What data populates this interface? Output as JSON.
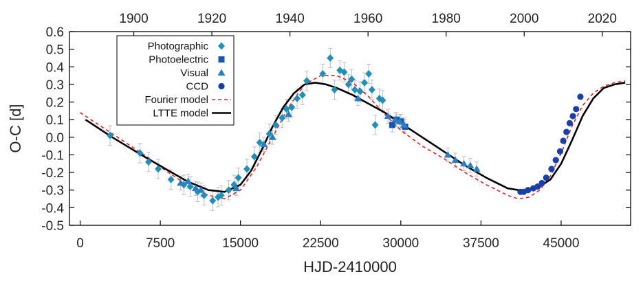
{
  "chart_data": {
    "type": "scatter",
    "title": "",
    "xlabel": "HJD-2410000",
    "ylabel": "O-C [d]",
    "xlim": [
      -1000,
      51500
    ],
    "ylim": [
      -0.5,
      0.6
    ],
    "x_ticks": [
      0,
      7500,
      15000,
      22500,
      30000,
      37500,
      45000
    ],
    "x_tick_labels": [
      "0",
      "7500",
      "15000",
      "22500",
      "30000",
      "37500",
      "45000"
    ],
    "y_ticks": [
      -0.5,
      -0.4,
      -0.3,
      -0.2,
      -0.1,
      0.0,
      0.1,
      0.2,
      0.3,
      0.4,
      0.5,
      0.6
    ],
    "y_tick_labels": [
      "-0.5",
      "-0.4",
      "-0.3",
      "-0.2",
      "-0.1",
      "0.0",
      "0.1",
      "0.2",
      "0.3",
      "0.4",
      "0.5",
      "0.6"
    ],
    "top_axis": {
      "label": "",
      "ticks": [
        1900,
        1920,
        1940,
        1960,
        1980,
        2000,
        2020
      ],
      "tick_labels": [
        "1900",
        "1920",
        "1940",
        "1960",
        "1980",
        "2000",
        "2020"
      ],
      "year_to_hjd": {
        "year0": 1900,
        "hjd0": 5020,
        "days_per_year": 365.25
      }
    },
    "grid": false,
    "legend_position": "top-left",
    "colors": {
      "photographic": "#2090b8",
      "photoelectric": "#1558b0",
      "visual": "#2a7fc4",
      "ccd": "#1a3fa8",
      "fourier": "#e02020",
      "ltte": "#000000",
      "errorbar": "#bdbdbd"
    },
    "series": [
      {
        "name": "Photographic",
        "marker": "diamond",
        "x": [
          2800,
          5600,
          6400,
          7300,
          8500,
          9700,
          10300,
          11000,
          11600,
          12400,
          12900,
          13200,
          13900,
          14400,
          14800,
          15600,
          16300,
          16800,
          17700,
          18300,
          18900,
          19300,
          19800,
          20300,
          20800,
          21200,
          22700,
          23400,
          23800,
          24300,
          24700,
          25100,
          25400,
          25700,
          26200,
          26600,
          27000,
          27300,
          27600,
          28000,
          28300
        ],
        "y": [
          0.01,
          -0.09,
          -0.14,
          -0.18,
          -0.24,
          -0.27,
          -0.28,
          -0.31,
          -0.33,
          -0.36,
          -0.34,
          -0.33,
          -0.3,
          -0.27,
          -0.23,
          -0.18,
          -0.11,
          -0.03,
          0.02,
          0.07,
          0.11,
          0.16,
          0.17,
          0.22,
          0.24,
          0.32,
          0.36,
          0.45,
          0.27,
          0.38,
          0.37,
          0.3,
          0.33,
          0.27,
          0.26,
          0.31,
          0.36,
          0.27,
          0.07,
          0.22,
          0.21
        ]
      },
      {
        "name": "Photoelectric",
        "marker": "square",
        "x": [
          29200,
          29600,
          30000,
          30400
        ],
        "y": [
          0.07,
          0.1,
          0.09,
          0.06
        ]
      },
      {
        "name": "Visual",
        "marker": "triangle",
        "x": [
          9400,
          10100,
          10800,
          11300,
          14600,
          17200,
          18000,
          19500,
          26000,
          28800,
          29500,
          29900,
          30300,
          34400,
          35100,
          35900,
          36500,
          37100
        ],
        "y": [
          -0.26,
          -0.25,
          -0.29,
          -0.3,
          -0.29,
          -0.04,
          0.0,
          0.13,
          0.22,
          0.12,
          0.1,
          0.09,
          0.07,
          -0.1,
          -0.13,
          -0.15,
          -0.16,
          -0.18
        ]
      },
      {
        "name": "CCD",
        "marker": "circle",
        "x": [
          41200,
          41500,
          41900,
          42400,
          42800,
          43200,
          43600,
          44100,
          44500,
          44900,
          45200,
          45500,
          45800,
          46100,
          46400,
          46800
        ],
        "y": [
          -0.31,
          -0.31,
          -0.3,
          -0.29,
          -0.28,
          -0.26,
          -0.23,
          -0.18,
          -0.13,
          -0.08,
          -0.02,
          0.03,
          0.08,
          0.12,
          0.16,
          0.23
        ]
      },
      {
        "name": "Fourier model",
        "type": "line",
        "style": "dashed",
        "x": [
          0,
          3000,
          6000,
          8000,
          10000,
          12000,
          13500,
          15000,
          16500,
          18000,
          19500,
          21000,
          22500,
          24000,
          25500,
          27000,
          28500,
          30000,
          32000,
          34000,
          36000,
          38000,
          40000,
          41000,
          42000,
          43000,
          44000,
          45000,
          46000,
          47000,
          48000,
          49000,
          50000,
          51000
        ],
        "y": [
          0.14,
          0.02,
          -0.1,
          -0.19,
          -0.27,
          -0.33,
          -0.35,
          -0.3,
          -0.17,
          0.0,
          0.17,
          0.3,
          0.35,
          0.35,
          0.31,
          0.23,
          0.13,
          0.04,
          -0.05,
          -0.12,
          -0.2,
          -0.27,
          -0.33,
          -0.35,
          -0.34,
          -0.3,
          -0.22,
          -0.09,
          0.06,
          0.18,
          0.25,
          0.29,
          0.31,
          0.32
        ]
      },
      {
        "name": "LTTE model",
        "type": "line",
        "style": "solid",
        "x": [
          500,
          3000,
          6000,
          8000,
          10000,
          12000,
          13500,
          15000,
          16000,
          17000,
          18000,
          19000,
          20000,
          21000,
          22000,
          23000,
          24000,
          25500,
          27000,
          28500,
          30000,
          32000,
          34000,
          36000,
          38000,
          40000,
          41000,
          42000,
          43000,
          44000,
          45000,
          46000,
          47000,
          48000,
          49000,
          50000,
          51000
        ],
        "y": [
          0.1,
          0.0,
          -0.11,
          -0.18,
          -0.25,
          -0.3,
          -0.31,
          -0.27,
          -0.19,
          -0.07,
          0.06,
          0.17,
          0.25,
          0.3,
          0.31,
          0.3,
          0.28,
          0.24,
          0.19,
          0.14,
          0.08,
          0.0,
          -0.08,
          -0.16,
          -0.23,
          -0.29,
          -0.3,
          -0.3,
          -0.28,
          -0.24,
          -0.15,
          -0.02,
          0.12,
          0.22,
          0.28,
          0.3,
          0.31
        ]
      }
    ]
  }
}
